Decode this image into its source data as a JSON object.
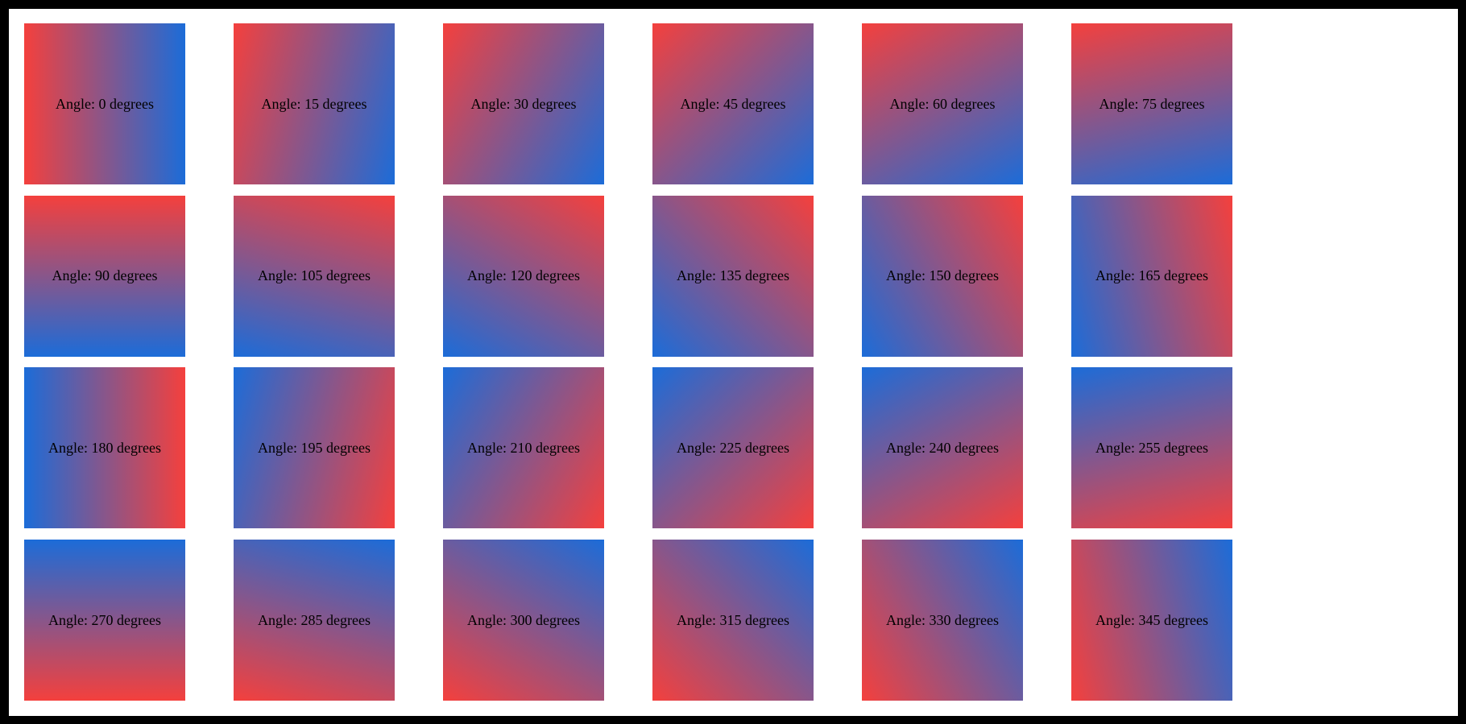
{
  "frame": {
    "color": "#000000"
  },
  "page": {
    "background": "#ffffff",
    "text_color": "#000000"
  },
  "gradient": {
    "start_color": "#f4403d",
    "end_color": "#1c6cd8"
  },
  "tiles": [
    {
      "angle": 0,
      "label": "Angle: 0 degrees"
    },
    {
      "angle": 15,
      "label": "Angle: 15 degrees"
    },
    {
      "angle": 30,
      "label": "Angle: 30 degrees"
    },
    {
      "angle": 45,
      "label": "Angle: 45 degrees"
    },
    {
      "angle": 60,
      "label": "Angle: 60 degrees"
    },
    {
      "angle": 75,
      "label": "Angle: 75 degrees"
    },
    {
      "angle": 90,
      "label": "Angle: 90 degrees"
    },
    {
      "angle": 105,
      "label": "Angle: 105 degrees"
    },
    {
      "angle": 120,
      "label": "Angle: 120 degrees"
    },
    {
      "angle": 135,
      "label": "Angle: 135 degrees"
    },
    {
      "angle": 150,
      "label": "Angle: 150 degrees"
    },
    {
      "angle": 165,
      "label": "Angle: 165 degrees"
    },
    {
      "angle": 180,
      "label": "Angle: 180 degrees"
    },
    {
      "angle": 195,
      "label": "Angle: 195 degrees"
    },
    {
      "angle": 210,
      "label": "Angle: 210 degrees"
    },
    {
      "angle": 225,
      "label": "Angle: 225 degrees"
    },
    {
      "angle": 240,
      "label": "Angle: 240 degrees"
    },
    {
      "angle": 255,
      "label": "Angle: 255 degrees"
    },
    {
      "angle": 270,
      "label": "Angle: 270 degrees"
    },
    {
      "angle": 285,
      "label": "Angle: 285 degrees"
    },
    {
      "angle": 300,
      "label": "Angle: 300 degrees"
    },
    {
      "angle": 315,
      "label": "Angle: 315 degrees"
    },
    {
      "angle": 330,
      "label": "Angle: 330 degrees"
    },
    {
      "angle": 345,
      "label": "Angle: 345 degrees"
    }
  ]
}
